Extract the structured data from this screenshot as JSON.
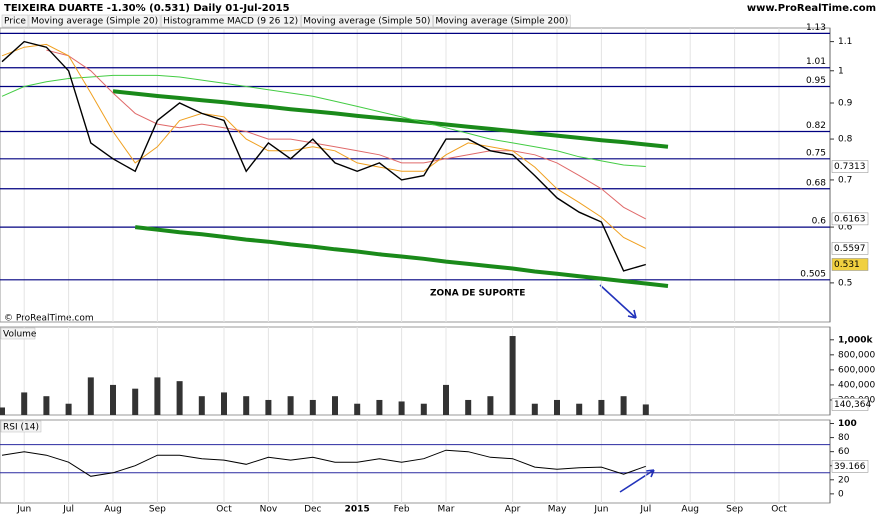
{
  "header": {
    "title": "TEIXEIRA DUARTE  -1.30% (0.531)  Daily  01-Jul-2015",
    "site": "www.ProRealTime.com",
    "extra_tab": "Histogramme MACD (9 26 12)",
    "copyright": "© ProRealTime.com"
  },
  "x_axis": {
    "categories": [
      null,
      "Jun",
      null,
      "Jul",
      null,
      "Aug",
      null,
      "Sep",
      null,
      null,
      "Oct",
      null,
      "Nov",
      null,
      "Dec",
      null,
      "2015",
      null,
      "Feb",
      null,
      "Mar",
      null,
      null,
      "Apr",
      null,
      "May",
      null,
      "Jun",
      null,
      "Jul",
      null,
      "Aug",
      null,
      "Sep",
      null,
      "Oct",
      null,
      null
    ]
  },
  "chart_data": [
    {
      "type": "line",
      "log_scale": true,
      "ylim": [
        0.44,
        1.15
      ],
      "yticks": [
        1.1,
        1,
        0.9,
        0.8,
        0.7,
        0.6,
        0.5
      ],
      "levels": [
        1.13,
        1.01,
        0.95,
        0.82,
        0.75,
        0.68,
        0.6,
        0.505
      ],
      "level_color": "#000080",
      "annotation": "ZONA DE SUPORTE",
      "series": [
        {
          "name": "Price",
          "color": "#000000",
          "values": [
            1.03,
            1.1,
            1.08,
            1.0,
            0.79,
            0.75,
            0.72,
            0.85,
            0.9,
            0.87,
            0.85,
            0.72,
            0.79,
            0.75,
            0.8,
            0.74,
            0.72,
            0.74,
            0.7,
            0.71,
            0.8,
            0.8,
            0.77,
            0.76,
            0.71,
            0.66,
            0.63,
            0.61,
            0.52,
            0.531,
            null,
            null,
            null,
            null,
            null,
            null,
            null,
            null
          ]
        },
        {
          "name": "Moving average (Simple 20)",
          "color": "#f0a020",
          "values": [
            1.05,
            1.08,
            1.09,
            1.05,
            0.93,
            0.82,
            0.74,
            0.78,
            0.85,
            0.87,
            0.86,
            0.8,
            0.77,
            0.77,
            0.78,
            0.77,
            0.74,
            0.73,
            0.72,
            0.72,
            0.76,
            0.79,
            0.78,
            0.77,
            0.73,
            0.68,
            0.65,
            0.62,
            0.58,
            0.5597,
            null,
            null,
            null,
            null,
            null,
            null,
            null,
            null
          ]
        },
        {
          "name": "Moving average (Simple 50)",
          "color": "#e06a6a",
          "values": [
            null,
            null,
            1.07,
            1.05,
            1.0,
            0.93,
            0.87,
            0.84,
            0.83,
            0.84,
            0.83,
            0.82,
            0.8,
            0.8,
            0.79,
            0.78,
            0.77,
            0.76,
            0.74,
            0.74,
            0.75,
            0.76,
            0.77,
            0.77,
            0.76,
            0.74,
            0.71,
            0.68,
            0.64,
            0.6163,
            null,
            null,
            null,
            null,
            null,
            null,
            null,
            null
          ]
        },
        {
          "name": "Moving average (Simple 200)",
          "color": "#44cc44",
          "values": [
            0.92,
            0.95,
            0.965,
            0.975,
            0.98,
            0.985,
            0.985,
            0.985,
            0.98,
            0.97,
            0.96,
            0.95,
            0.94,
            0.93,
            0.92,
            0.905,
            0.89,
            0.875,
            0.86,
            0.845,
            0.83,
            0.815,
            0.8,
            0.79,
            0.78,
            0.77,
            0.755,
            0.745,
            0.735,
            0.7313,
            null,
            null,
            null,
            null,
            null,
            null,
            null,
            null
          ]
        }
      ],
      "trendlines": [
        {
          "color": "#1a8a1a",
          "values": [
            null,
            null,
            null,
            null,
            null,
            0.935,
            0.928,
            0.921,
            0.915,
            0.908,
            0.902,
            0.895,
            0.889,
            0.882,
            0.876,
            0.87,
            0.863,
            0.857,
            0.851,
            0.845,
            0.839,
            0.833,
            0.827,
            0.821,
            0.815,
            0.809,
            0.803,
            0.797,
            0.792,
            0.786,
            0.78,
            null,
            null,
            null,
            null,
            null,
            null,
            null
          ]
        },
        {
          "color": "#1a8a1a",
          "values": [
            null,
            null,
            null,
            null,
            null,
            null,
            0.6,
            0.595,
            0.59,
            0.586,
            0.581,
            0.576,
            0.572,
            0.567,
            0.563,
            0.558,
            0.554,
            0.549,
            0.545,
            0.541,
            0.536,
            0.532,
            0.528,
            0.524,
            0.519,
            0.515,
            0.511,
            0.507,
            0.503,
            0.499,
            0.495,
            null,
            null,
            null,
            null,
            null,
            null,
            null
          ]
        }
      ]
    },
    {
      "type": "bar",
      "title": "Volume",
      "color": "#333333",
      "ylim": [
        0,
        1170000
      ],
      "yticks": [
        {
          "value": 1000000,
          "label": "1,000k"
        },
        {
          "value": 800000,
          "label": "800,000"
        },
        {
          "value": 600000,
          "label": "600,000"
        },
        {
          "value": 400000,
          "label": "400,000"
        },
        {
          "value": 200000,
          "label": "200,000"
        }
      ],
      "values": [
        100000,
        300000,
        250000,
        150000,
        500000,
        400000,
        350000,
        500000,
        450000,
        250000,
        300000,
        250000,
        200000,
        250000,
        200000,
        250000,
        150000,
        200000,
        180000,
        150000,
        400000,
        200000,
        250000,
        1050000,
        150000,
        200000,
        150000,
        200000,
        250000,
        140364,
        null,
        null,
        null,
        null,
        null,
        null,
        null,
        null
      ],
      "value_labels": [
        null,
        null,
        null,
        null,
        null,
        null,
        null,
        null,
        null,
        null,
        null,
        null,
        null,
        null,
        null,
        null,
        null,
        null,
        null,
        null,
        null,
        null,
        null,
        null,
        null,
        null,
        null,
        null,
        null,
        "140,364",
        null,
        null,
        null,
        null,
        null,
        null,
        null,
        null
      ]
    },
    {
      "type": "line",
      "title": "RSI (14)",
      "color": "#000000",
      "ylim": [
        -13,
        105
      ],
      "yticks": [
        100,
        80,
        60,
        40,
        20,
        0
      ],
      "bands": [
        70,
        30
      ],
      "values": [
        55,
        60,
        55,
        45,
        25,
        30,
        40,
        55,
        55,
        50,
        48,
        42,
        52,
        48,
        52,
        45,
        45,
        50,
        45,
        50,
        62,
        60,
        52,
        50,
        38,
        35,
        37,
        38,
        28,
        39.166,
        null,
        null,
        null,
        null,
        null,
        null,
        null,
        null
      ]
    }
  ]
}
